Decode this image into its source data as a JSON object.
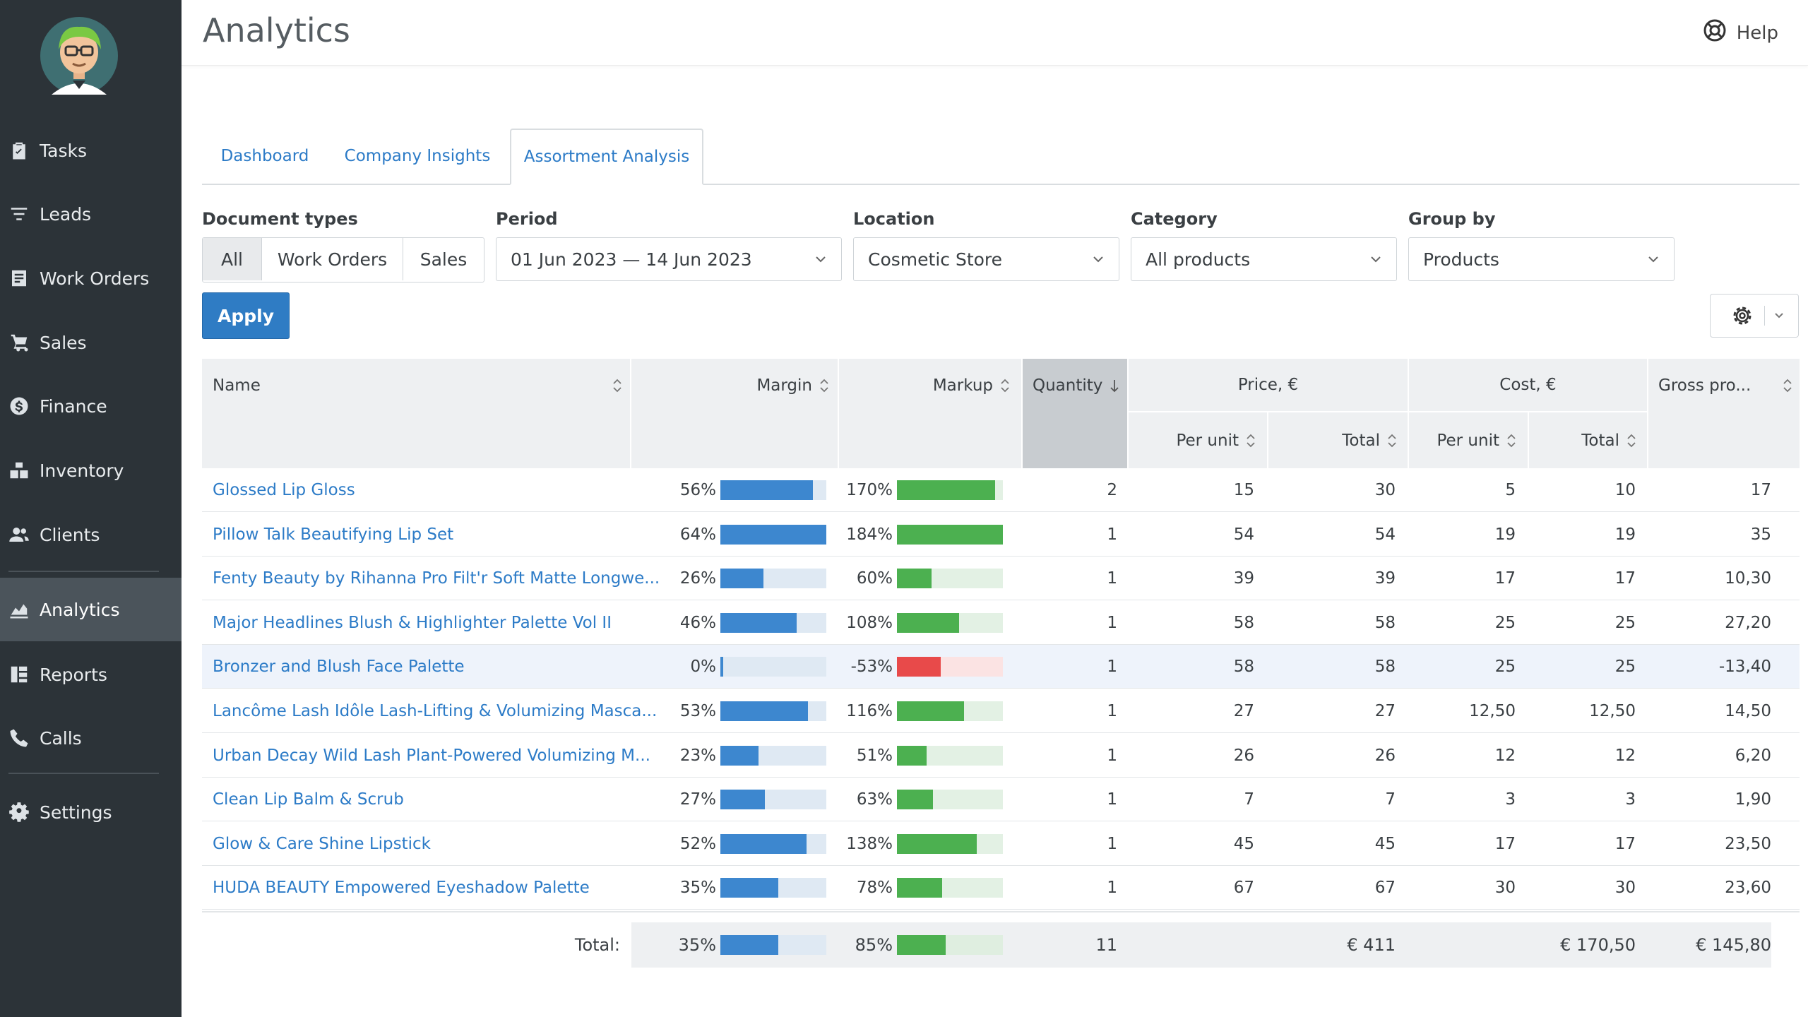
{
  "header": {
    "title": "Analytics",
    "help_label": "Help"
  },
  "sidebar": {
    "items": [
      {
        "label": "Tasks",
        "icon": "clipboard-icon",
        "active": false
      },
      {
        "label": "Leads",
        "icon": "filter-icon",
        "active": false
      },
      {
        "label": "Work Orders",
        "icon": "work-orders-icon",
        "active": false
      },
      {
        "label": "Sales",
        "icon": "cart-icon",
        "active": false
      },
      {
        "label": "Finance",
        "icon": "dollar-icon",
        "active": false
      },
      {
        "label": "Inventory",
        "icon": "boxes-icon",
        "active": false
      },
      {
        "label": "Clients",
        "icon": "users-icon",
        "active": false
      },
      {
        "label": "Analytics",
        "icon": "chart-icon",
        "active": true
      },
      {
        "label": "Reports",
        "icon": "reports-icon",
        "active": false
      },
      {
        "label": "Calls",
        "icon": "phone-icon",
        "active": false
      },
      {
        "label": "Settings",
        "icon": "gear-icon",
        "active": false
      }
    ]
  },
  "tabs": [
    {
      "label": "Dashboard",
      "active": false
    },
    {
      "label": "Company Insights",
      "active": false
    },
    {
      "label": "Assortment Analysis",
      "active": true
    }
  ],
  "filters": {
    "document_types": {
      "label": "Document types",
      "options": [
        "All",
        "Work Orders",
        "Sales"
      ],
      "selected": "All"
    },
    "period": {
      "label": "Period",
      "value": "01 Jun 2023 — 14 Jun 2023"
    },
    "location": {
      "label": "Location",
      "value": "Cosmetic Store"
    },
    "category": {
      "label": "Category",
      "value": "All products"
    },
    "group_by": {
      "label": "Group by",
      "value": "Products"
    },
    "apply_label": "Apply"
  },
  "table": {
    "columns": {
      "name": "Name",
      "margin": "Margin",
      "markup": "Markup",
      "quantity": "Quantity",
      "price": "Price, €",
      "cost": "Cost, €",
      "gross_profit": "Gross pro...",
      "per_unit": "Per unit",
      "total": "Total"
    },
    "colors": {
      "margin_bar": "#3d87cf",
      "markup_bar": "#4cb050",
      "negative_bar": "#e84a4a"
    },
    "rows": [
      {
        "name": "Glossed Lip Gloss",
        "margin": "56%",
        "margin_pct": 56,
        "markup": "170%",
        "markup_pct": 170,
        "quantity": "2",
        "price_unit": "15",
        "price_total": "30",
        "cost_unit": "5",
        "cost_total": "10",
        "gross_profit": "17"
      },
      {
        "name": "Pillow Talk Beautifying Lip Set",
        "margin": "64%",
        "margin_pct": 64,
        "markup": "184%",
        "markup_pct": 184,
        "quantity": "1",
        "price_unit": "54",
        "price_total": "54",
        "cost_unit": "19",
        "cost_total": "19",
        "gross_profit": "35"
      },
      {
        "name": "Fenty Beauty by Rihanna Pro Filt'r Soft Matte Longwe...",
        "margin": "26%",
        "margin_pct": 26,
        "markup": "60%",
        "markup_pct": 60,
        "quantity": "1",
        "price_unit": "39",
        "price_total": "39",
        "cost_unit": "17",
        "cost_total": "17",
        "gross_profit": "10,30"
      },
      {
        "name": "Major Headlines Blush & Highlighter Palette Vol II",
        "margin": "46%",
        "margin_pct": 46,
        "markup": "108%",
        "markup_pct": 108,
        "quantity": "1",
        "price_unit": "58",
        "price_total": "58",
        "cost_unit": "25",
        "cost_total": "25",
        "gross_profit": "27,20"
      },
      {
        "name": "Bronzer and Blush Face Palette",
        "margin": "0%",
        "margin_pct": 0,
        "markup": "-53%",
        "markup_pct": -53,
        "quantity": "1",
        "price_unit": "58",
        "price_total": "58",
        "cost_unit": "25",
        "cost_total": "25",
        "gross_profit": "-13,40",
        "highlighted": true
      },
      {
        "name": "Lancôme Lash Idôle Lash-Lifting & Volumizing Masca...",
        "margin": "53%",
        "margin_pct": 53,
        "markup": "116%",
        "markup_pct": 116,
        "quantity": "1",
        "price_unit": "27",
        "price_total": "27",
        "cost_unit": "12,50",
        "cost_total": "12,50",
        "gross_profit": "14,50"
      },
      {
        "name": "Urban Decay Wild Lash Plant-Powered Volumizing M...",
        "margin": "23%",
        "margin_pct": 23,
        "markup": "51%",
        "markup_pct": 51,
        "quantity": "1",
        "price_unit": "26",
        "price_total": "26",
        "cost_unit": "12",
        "cost_total": "12",
        "gross_profit": "6,20"
      },
      {
        "name": "Clean Lip Balm & Scrub",
        "margin": "27%",
        "margin_pct": 27,
        "markup": "63%",
        "markup_pct": 63,
        "quantity": "1",
        "price_unit": "7",
        "price_total": "7",
        "cost_unit": "3",
        "cost_total": "3",
        "gross_profit": "1,90"
      },
      {
        "name": "Glow & Care Shine Lipstick",
        "margin": "52%",
        "margin_pct": 52,
        "markup": "138%",
        "markup_pct": 138,
        "quantity": "1",
        "price_unit": "45",
        "price_total": "45",
        "cost_unit": "17",
        "cost_total": "17",
        "gross_profit": "23,50"
      },
      {
        "name": "HUDA BEAUTY Empowered Eyeshadow Palette",
        "margin": "35%",
        "margin_pct": 35,
        "markup": "78%",
        "markup_pct": 78,
        "quantity": "1",
        "price_unit": "67",
        "price_total": "67",
        "cost_unit": "30",
        "cost_total": "30",
        "gross_profit": "23,60"
      }
    ],
    "totals": {
      "label": "Total:",
      "margin": "35%",
      "margin_pct": 35,
      "markup": "85%",
      "markup_pct": 85,
      "quantity": "11",
      "price_total": "€ 411",
      "cost_total": "€ 170,50",
      "gross_profit": "€ 145,80"
    }
  }
}
